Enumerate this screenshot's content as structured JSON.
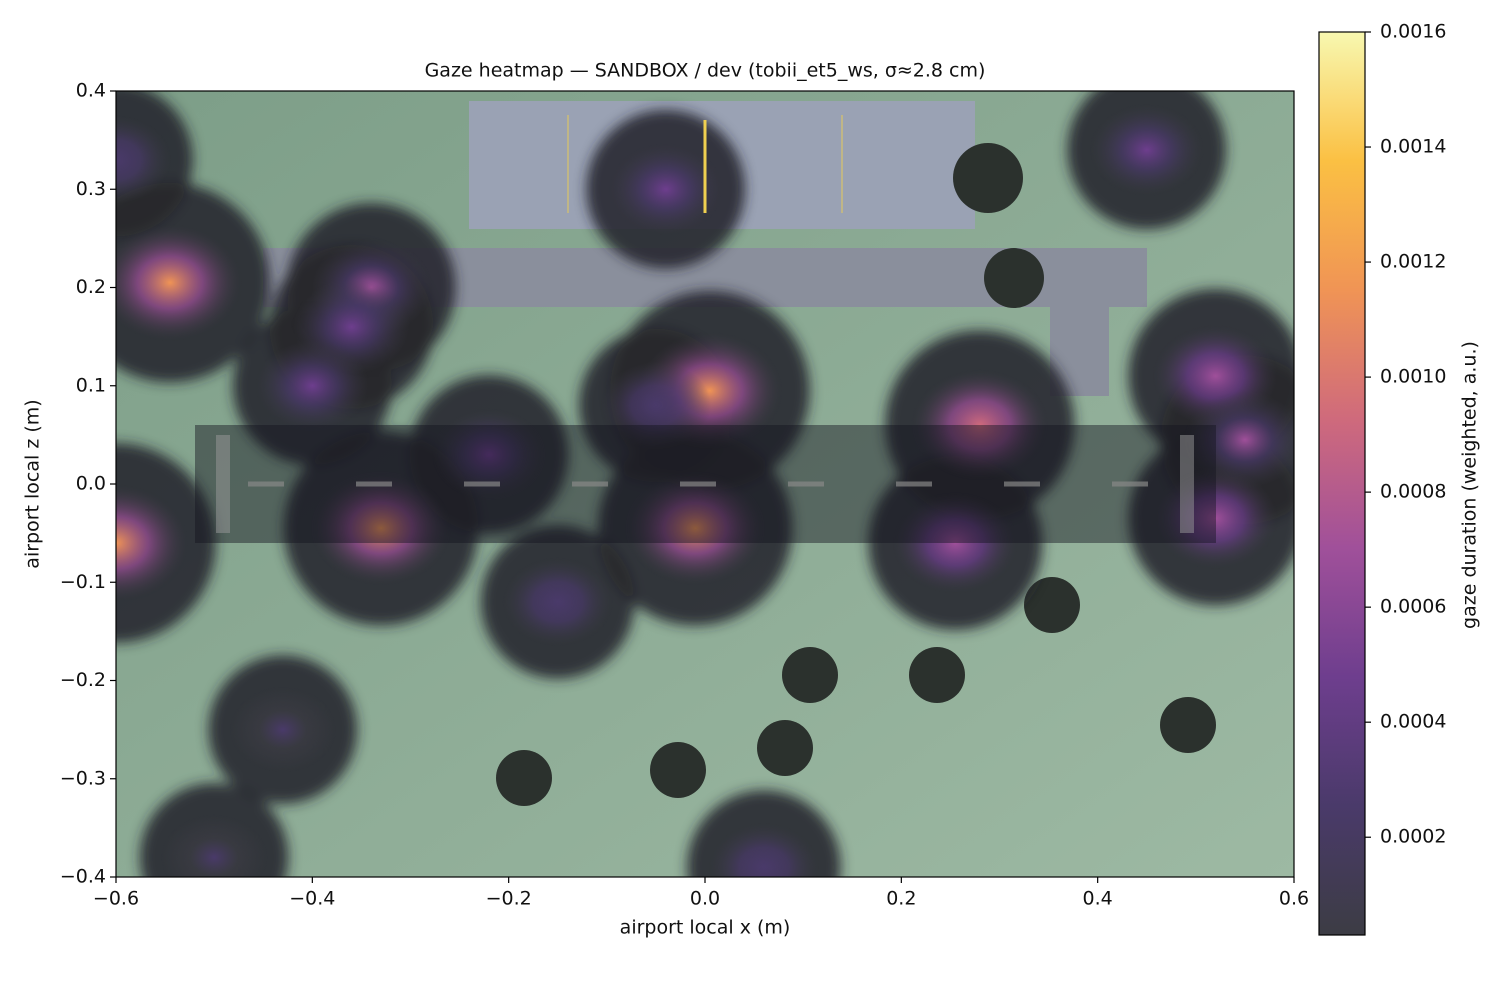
{
  "chart_data": {
    "type": "heatmap",
    "title": "Gaze heatmap — SANDBOX / dev (tobii_et5_ws, σ≈2.8 cm)",
    "x_label": "airport local x (m)",
    "y_label": "airport local z (m)",
    "xlim": [
      -0.6,
      0.6
    ],
    "ylim": [
      -0.4,
      0.4
    ],
    "xticks": [
      {
        "value": -0.6,
        "label": "−0.6"
      },
      {
        "value": -0.4,
        "label": "−0.4"
      },
      {
        "value": -0.2,
        "label": "−0.2"
      },
      {
        "value": 0,
        "label": "0.0"
      },
      0.2,
      0.4,
      0.6
    ],
    "yticks": [
      {
        "value": -0.4,
        "label": "−0.4"
      },
      {
        "value": -0.3,
        "label": "−0.3"
      },
      {
        "value": -0.2,
        "label": "−0.2"
      },
      {
        "value": -0.1,
        "label": "−0.1"
      },
      {
        "value": 0,
        "label": "0.0"
      },
      0.1,
      0.2,
      0.3,
      0.4
    ],
    "colormap": "inferno",
    "colorbar_label": "gaze duration (weighted, a.u.)",
    "clim": [
      3e-05,
      0.0016
    ],
    "cticks": [
      0.0002,
      0.0004,
      0.0006,
      0.0008,
      {
        "value": 0.001,
        "label": "0.0010"
      },
      0.0012,
      0.0014,
      0.0016
    ],
    "x": [
      -0.545,
      -0.6,
      -0.33,
      0.005,
      -0.01,
      0.28,
      0.255,
      0.52,
      0.55,
      0.52,
      -0.34,
      -0.36,
      0.45,
      -0.04,
      -0.6,
      -0.43,
      -0.22,
      -0.05,
      0.06,
      -0.5,
      -0.15,
      -0.4
    ],
    "z": [
      0.205,
      -0.06,
      -0.045,
      0.095,
      -0.045,
      0.06,
      -0.06,
      0.11,
      0.045,
      -0.035,
      0.2,
      0.16,
      0.34,
      0.3,
      0.33,
      -0.25,
      0.03,
      0.08,
      -0.39,
      -0.38,
      -0.12,
      0.1
    ],
    "values": [
      0.0012,
      0.0012,
      0.0011,
      0.0012,
      0.0011,
      0.001,
      0.0007,
      0.0007,
      0.0006,
      0.0007,
      0.0006,
      0.0005,
      0.0004,
      0.0004,
      0.0003,
      0.0002,
      0.0004,
      0.0003,
      0.0003,
      0.0002,
      0.0003,
      0.0004
    ]
  }
}
